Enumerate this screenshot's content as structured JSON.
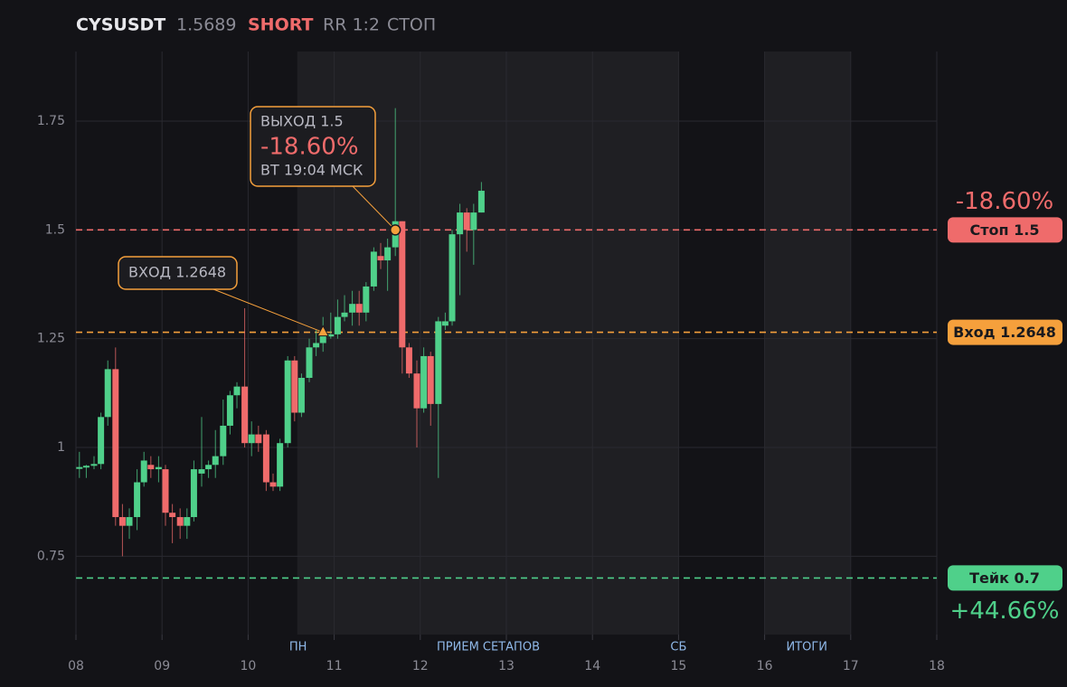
{
  "chart_data": {
    "type": "candlestick",
    "title": "CYSUSDT",
    "price": "1.5689",
    "side": "SHORT",
    "rr": "RR 1:2",
    "status": "СТОП",
    "up_color": "#4fd08a",
    "down_color": "#ef6b6b",
    "xlim": [
      8,
      18
    ],
    "ylim": [
      0.57,
      1.91
    ],
    "xticks": [
      {
        "value": 8,
        "label": "08"
      },
      {
        "value": 9,
        "label": "09"
      },
      10,
      11,
      12,
      13,
      14,
      15,
      16,
      17,
      18
    ],
    "yticks": [
      0.75,
      1,
      1.25,
      1.5,
      1.75
    ],
    "grid": true,
    "shaded_ranges": [
      [
        10.57,
        15
      ],
      [
        16,
        17
      ]
    ],
    "session_labels": [
      {
        "value": 10.58,
        "label": "ПН"
      },
      {
        "value": 12.79,
        "label": "ПРИЕМ СЕТАПОВ"
      },
      {
        "value": 15,
        "label": "СБ"
      },
      {
        "value": 16.49,
        "label": "ИТОГИ"
      }
    ],
    "x": [
      8.04,
      8.12,
      8.21,
      8.29,
      8.37,
      8.46,
      8.54,
      8.62,
      8.71,
      8.79,
      8.87,
      8.96,
      9.04,
      9.12,
      9.21,
      9.29,
      9.37,
      9.46,
      9.54,
      9.62,
      9.71,
      9.79,
      9.87,
      9.96,
      10.04,
      10.12,
      10.21,
      10.29,
      10.37,
      10.46,
      10.54,
      10.62,
      10.71,
      10.79,
      10.87,
      10.96,
      11.04,
      11.12,
      11.21,
      11.29,
      11.37,
      11.46,
      11.54,
      11.62,
      11.71,
      11.79,
      11.87,
      11.96,
      12.04,
      12.12,
      12.21,
      12.29,
      12.37,
      12.46,
      12.54,
      12.62,
      12.71
    ],
    "open": [
      0.952,
      0.955,
      0.958,
      0.962,
      1.07,
      1.18,
      0.84,
      0.82,
      0.84,
      0.92,
      0.96,
      0.95,
      0.95,
      0.85,
      0.84,
      0.82,
      0.84,
      0.94,
      0.95,
      0.96,
      0.98,
      1.05,
      1.12,
      1.14,
      1.01,
      1.03,
      1.03,
      0.92,
      0.91,
      1.01,
      1.2,
      1.08,
      1.16,
      1.23,
      1.24,
      1.255,
      1.26,
      1.3,
      1.31,
      1.33,
      1.31,
      1.37,
      1.44,
      1.43,
      1.46,
      1.52,
      1.23,
      1.17,
      1.09,
      1.21,
      1.1,
      1.28,
      1.29,
      1.49,
      1.54,
      1.5,
      1.54
    ],
    "high": [
      0.99,
      0.96,
      0.98,
      1.08,
      1.2,
      1.23,
      0.87,
      0.86,
      0.95,
      0.99,
      0.98,
      0.98,
      0.96,
      0.87,
      0.86,
      0.86,
      0.97,
      1.07,
      0.97,
      1.04,
      1.11,
      1.13,
      1.15,
      1.32,
      1.06,
      1.05,
      1.04,
      0.94,
      1.02,
      1.21,
      1.21,
      1.17,
      1.25,
      1.27,
      1.3,
      1.31,
      1.34,
      1.35,
      1.36,
      1.36,
      1.38,
      1.46,
      1.47,
      1.48,
      1.78,
      1.52,
      1.24,
      1.2,
      1.23,
      1.22,
      1.3,
      1.31,
      1.5,
      1.56,
      1.55,
      1.56,
      1.61
    ],
    "low": [
      0.93,
      0.93,
      0.95,
      0.95,
      1.05,
      0.82,
      0.75,
      0.79,
      0.81,
      0.91,
      0.93,
      0.92,
      0.82,
      0.78,
      0.79,
      0.79,
      0.83,
      0.91,
      0.93,
      0.93,
      0.96,
      1.03,
      1.09,
      1.0,
      0.98,
      0.99,
      0.9,
      0.9,
      0.9,
      1.0,
      1.06,
      1.07,
      1.15,
      1.21,
      1.22,
      1.25,
      1.25,
      1.29,
      1.28,
      1.28,
      1.29,
      1.36,
      1.41,
      1.36,
      1.44,
      1.17,
      1.16,
      1.0,
      1.08,
      1.05,
      0.93,
      1.27,
      1.28,
      1.35,
      1.45,
      1.42,
      1.54
    ],
    "close": [
      0.955,
      0.958,
      0.962,
      1.07,
      1.18,
      0.84,
      0.82,
      0.84,
      0.92,
      0.97,
      0.95,
      0.955,
      0.85,
      0.84,
      0.82,
      0.84,
      0.95,
      0.95,
      0.96,
      0.98,
      1.05,
      1.12,
      1.14,
      1.01,
      1.03,
      1.01,
      0.92,
      0.91,
      1.01,
      1.2,
      1.08,
      1.16,
      1.23,
      1.24,
      1.26,
      1.26,
      1.3,
      1.31,
      1.33,
      1.31,
      1.37,
      1.45,
      1.43,
      1.46,
      1.52,
      1.23,
      1.17,
      1.09,
      1.21,
      1.1,
      1.29,
      1.29,
      1.49,
      1.54,
      1.5,
      1.54,
      1.59
    ],
    "levels": [
      {
        "name": "Стоп 1.5",
        "value": 1.5,
        "color": "#ef6b6b",
        "pct_label": "-18.60%",
        "pct_pos": "above"
      },
      {
        "name": "Вход 1.2648",
        "value": 1.2648,
        "color": "#f5a03c"
      },
      {
        "name": "Тейк 0.7",
        "value": 0.7,
        "color": "#4fd08a",
        "pct_label": "+44.66%",
        "pct_pos": "below"
      }
    ],
    "annotations": [
      {
        "lines": [
          "ВХОД 1.2648"
        ],
        "x": 10.87,
        "y": 1.2648,
        "marker": "triangle"
      },
      {
        "lines": [
          "ВЫХОД 1.5",
          "-18.60%",
          "ВТ 19:04 МСК"
        ],
        "x": 11.71,
        "y": 1.5,
        "marker": "circle"
      }
    ]
  }
}
